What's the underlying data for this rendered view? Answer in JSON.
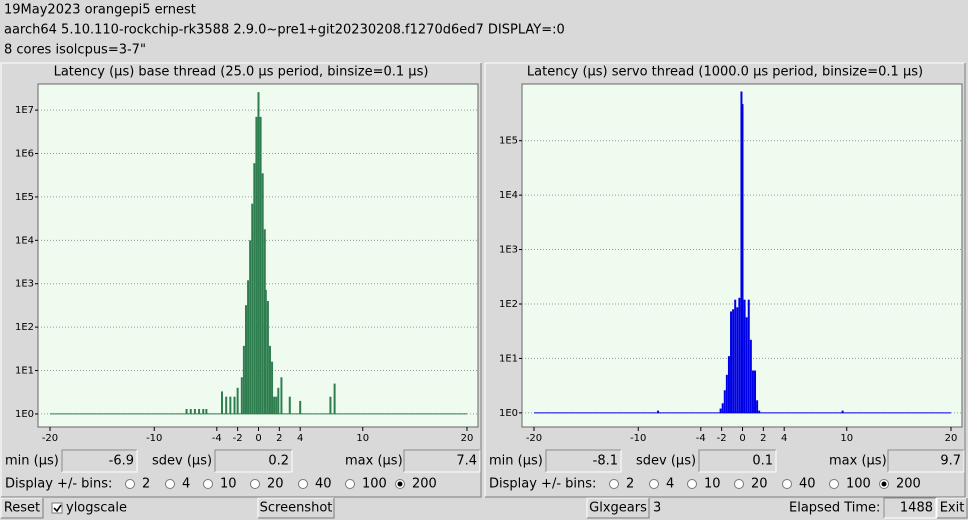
{
  "header": {
    "lines": [
      "19May2023 orangepi5 ernest",
      "aarch64  5.10.110-rockchip-rk3588  2.9.0~pre1+git20230208.f1270d6ed7  DISPLAY=:0",
      "8 cores  isolcpus=3-7\""
    ]
  },
  "chart_data": [
    {
      "type": "bar",
      "title": "Latency (µs) base thread (25.0 µs period, binsize=0.1 µs)",
      "x": [
        -6.9,
        -6.5,
        -6.1,
        -5.7,
        -5.3,
        -5.0,
        -3.5,
        -3.1,
        -2.7,
        -2.3,
        -2.0,
        -1.6,
        -1.4,
        -1.2,
        -1.0,
        -0.8,
        -0.6,
        -0.4,
        -0.2,
        0.0,
        0.2,
        0.4,
        0.6,
        0.7,
        0.9,
        1.1,
        1.3,
        1.5,
        1.7,
        1.9,
        2.2,
        3.0,
        4.0,
        6.9,
        7.3
      ],
      "values": [
        1.3,
        1.3,
        1.3,
        1.3,
        1.3,
        1.3,
        3.3,
        2.5,
        2.5,
        2.5,
        4,
        7,
        37,
        320,
        1200,
        10000,
        70000,
        600000,
        7000000,
        26000000,
        7000000,
        350000,
        18000,
        720,
        400,
        37,
        16,
        2.5,
        2.5,
        4,
        7,
        2.5,
        2,
        2.5,
        5
      ],
      "color": "#2e7d4f",
      "xlim": [
        -20,
        20
      ],
      "xticks": [
        -20,
        -10,
        -4,
        -2,
        0,
        2,
        4,
        10,
        20
      ],
      "ylim": [
        0.5,
        40000000
      ],
      "yticks": [
        {
          "value": 1,
          "label": "1E0"
        },
        {
          "value": 10,
          "label": "1E1"
        },
        {
          "value": 100,
          "label": "1E2"
        },
        {
          "value": 1000,
          "label": "1E3"
        },
        {
          "value": 10000,
          "label": "1E4"
        },
        {
          "value": 100000,
          "label": "1E5"
        },
        {
          "value": 1000000,
          "label": "1E6"
        },
        {
          "value": 10000000,
          "label": "1E7"
        }
      ],
      "log_scale": true,
      "grid": true
    },
    {
      "type": "bar",
      "title": "Latency (µs) servo thread (1000.0 µs period, binsize=0.1 µs)",
      "x": [
        -8.1,
        -2.1,
        -1.9,
        -1.7,
        -1.5,
        -1.3,
        -1.1,
        -0.9,
        -0.7,
        -0.5,
        -0.3,
        -0.1,
        0.0,
        0.2,
        0.4,
        0.6,
        0.8,
        1.0,
        1.2,
        1.4,
        1.6,
        9.6
      ],
      "values": [
        1.1,
        1.2,
        1.5,
        2.6,
        5,
        11,
        73,
        80,
        120,
        87,
        130,
        800000,
        470000,
        120,
        57,
        120,
        22,
        6,
        6,
        1.7,
        1.1,
        1.1
      ],
      "color": "#0000e6",
      "xlim": [
        -20,
        20
      ],
      "xticks": [
        -20,
        -10,
        -4,
        -2,
        0,
        2,
        4,
        10,
        20
      ],
      "ylim": [
        0.55,
        1100000
      ],
      "yticks": [
        {
          "value": 1,
          "label": "1E0"
        },
        {
          "value": 10,
          "label": "1E1"
        },
        {
          "value": 100,
          "label": "1E2"
        },
        {
          "value": 1000,
          "label": "1E3"
        },
        {
          "value": 10000,
          "label": "1E4"
        },
        {
          "value": 100000,
          "label": "1E5"
        }
      ],
      "log_scale": true,
      "grid": true
    }
  ],
  "panels": [
    {
      "stats": [
        {
          "label": "min (µs)",
          "value": -6.9
        },
        {
          "label": "sdev (µs)",
          "value": 0.2
        },
        {
          "label": "max (µs)",
          "value": 7.4
        }
      ],
      "bins": {
        "label": "Display +/- bins:",
        "options": [
          2,
          4,
          10,
          20,
          40,
          100,
          200
        ],
        "selected": 200
      }
    },
    {
      "stats": [
        {
          "label": "min (µs)",
          "value": -8.1
        },
        {
          "label": "sdev (µs)",
          "value": 0.1
        },
        {
          "label": "max (µs)",
          "value": 9.7
        }
      ],
      "bins": {
        "label": "Display +/- bins:",
        "options": [
          2,
          4,
          10,
          20,
          40,
          100,
          200
        ],
        "selected": 200
      }
    }
  ],
  "footer": {
    "reset": "Reset",
    "ylogscale": {
      "label": "ylogscale",
      "checked": true
    },
    "screenshot": "Screenshot",
    "glxgears": "Glxgears",
    "glxgears_count": 3,
    "elapsed_label": "Elapsed Time:",
    "elapsed": 1488,
    "exit": "Exit"
  }
}
